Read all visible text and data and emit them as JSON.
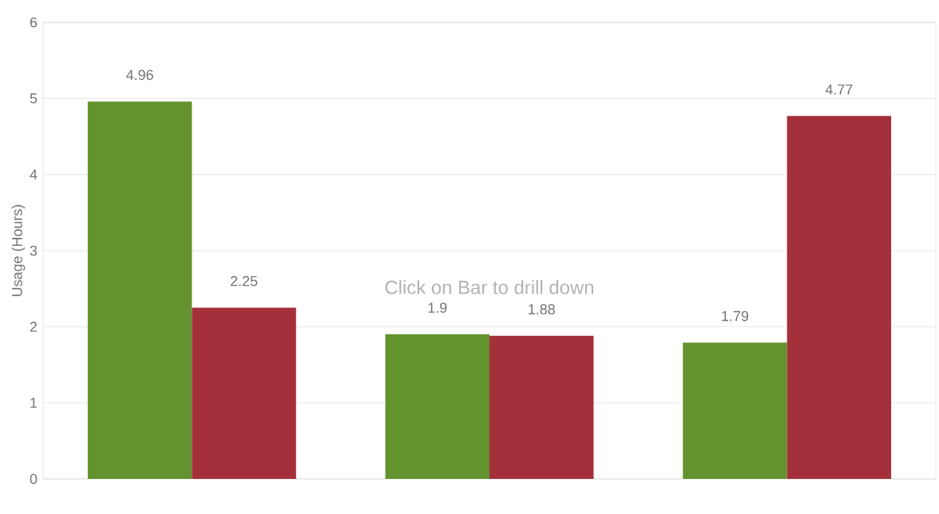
{
  "chart_data": {
    "type": "bar",
    "ylabel": "Usage (Hours)",
    "categories": [
      null,
      null,
      null
    ],
    "series": [
      {
        "color": "#64922f",
        "values": [
          4.96,
          1.9,
          1.79
        ]
      },
      {
        "color": "#a3303a",
        "values": [
          2.25,
          1.88,
          4.77
        ]
      }
    ],
    "ylim": [
      0,
      6
    ],
    "yticks": [
      0,
      1,
      2,
      3,
      4,
      5,
      6
    ],
    "grid": true,
    "data_labels": true,
    "annotations": [
      "Click on Bar to drill down"
    ]
  }
}
